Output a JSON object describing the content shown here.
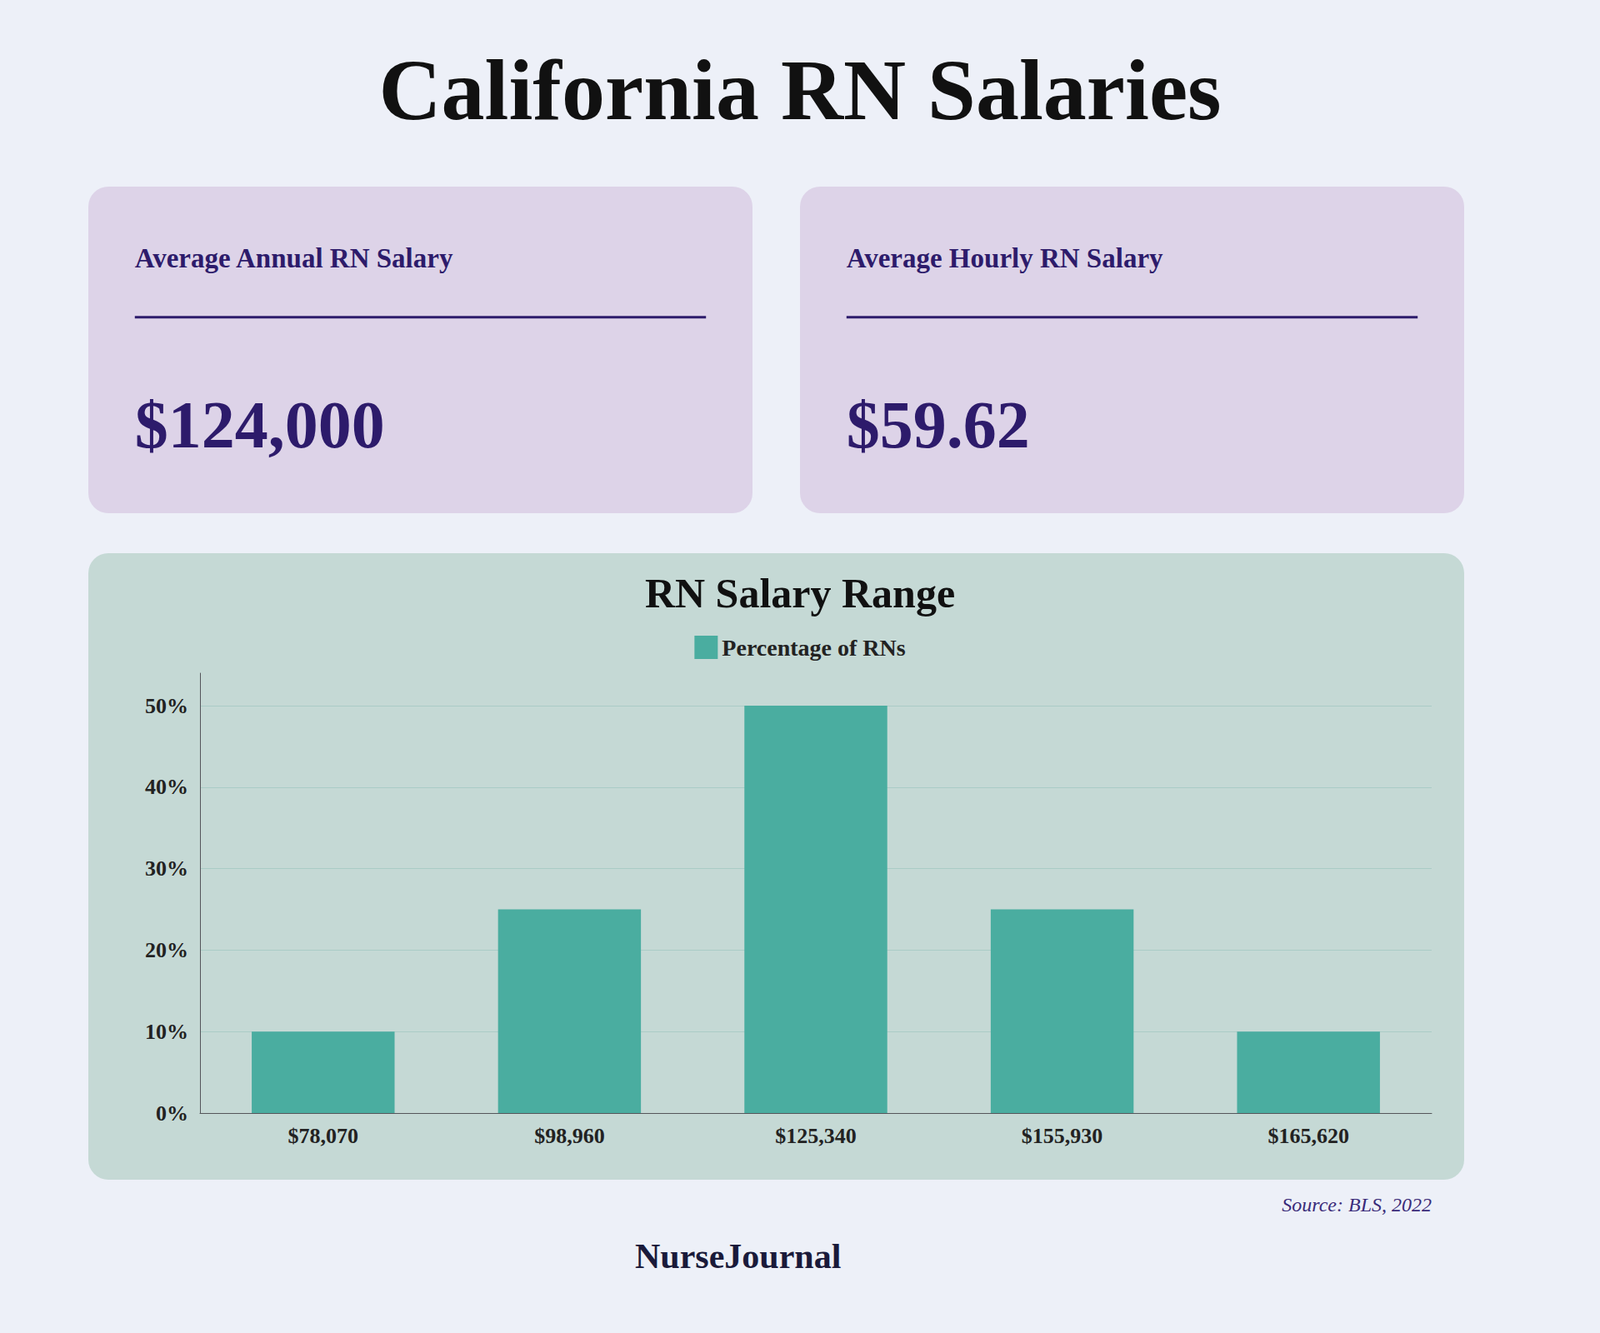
{
  "chart_data": {
    "type": "bar",
    "title": "California RN Salaries",
    "subtitle": "RN Salary Range",
    "categories": [
      "$78,070",
      "$98,960",
      "$125,340",
      "$155,930",
      "$165,620"
    ],
    "series": [
      {
        "name": "Percentage of RNs",
        "color": "#4AADA0",
        "values": [
          10,
          25,
          50,
          25,
          10
        ]
      }
    ],
    "ylim": [
      0,
      54
    ],
    "yticks": [
      {
        "value": 0,
        "label": "0%"
      },
      {
        "value": 10,
        "label": "10%"
      },
      {
        "value": 20,
        "label": "20%"
      },
      {
        "value": 30,
        "label": "30%"
      },
      {
        "value": 40,
        "label": "40%"
      },
      {
        "value": 50,
        "label": "50%"
      }
    ],
    "grid": true,
    "legend": "top",
    "annotations": [
      "Average Annual RN Salary",
      "$124,000",
      "Average Hourly RN Salary",
      "$59.62",
      "Source: BLS, 2022",
      "NurseJournal"
    ]
  }
}
